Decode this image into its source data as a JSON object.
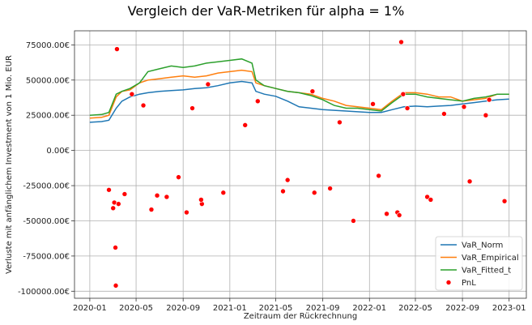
{
  "chart_data": {
    "type": "line",
    "title": "Vergleich der VaR-Metriken für alpha = 1%",
    "xlabel": "Zeitraum der Rückrechnung",
    "ylabel": "Verluste mit anfänglichem Investment von 1 Mio. EUR",
    "xlim": [
      "2019-11-22",
      "2023-02-15"
    ],
    "ylim": [
      -105000,
      85000
    ],
    "x_ticks": [
      "2020-01",
      "2020-05",
      "2020-09",
      "2021-01",
      "2021-05",
      "2021-09",
      "2022-01",
      "2022-05",
      "2022-09",
      "2023-01"
    ],
    "y_ticks": [
      75000,
      50000,
      25000,
      0,
      -25000,
      -50000,
      -75000,
      -100000
    ],
    "y_tick_labels": [
      "75000.00€",
      "50000.00€",
      "25000.00€",
      "0.00€",
      "-25000.00€",
      "-50000.00€",
      "-75000.00€",
      "-100000.00€"
    ],
    "grid": true,
    "legend_position": "bottom-right",
    "series": [
      {
        "name": "VaR_Norm",
        "kind": "line",
        "color": "#1f77b4",
        "points": [
          [
            "2020-01-01",
            20000
          ],
          [
            "2020-02-01",
            20500
          ],
          [
            "2020-02-20",
            21500
          ],
          [
            "2020-03-10",
            30000
          ],
          [
            "2020-03-25",
            35000
          ],
          [
            "2020-04-15",
            38000
          ],
          [
            "2020-05-10",
            40000
          ],
          [
            "2020-06-01",
            41000
          ],
          [
            "2020-07-01",
            42000
          ],
          [
            "2020-08-01",
            42500
          ],
          [
            "2020-09-01",
            43000
          ],
          [
            "2020-10-01",
            44000
          ],
          [
            "2020-11-01",
            44500
          ],
          [
            "2020-12-01",
            46000
          ],
          [
            "2021-01-01",
            48000
          ],
          [
            "2021-02-01",
            49000
          ],
          [
            "2021-02-28",
            48000
          ],
          [
            "2021-03-10",
            42000
          ],
          [
            "2021-04-01",
            40000
          ],
          [
            "2021-05-01",
            38500
          ],
          [
            "2021-06-01",
            35000
          ],
          [
            "2021-07-01",
            31000
          ],
          [
            "2021-08-01",
            30000
          ],
          [
            "2021-09-01",
            29000
          ],
          [
            "2021-10-01",
            28500
          ],
          [
            "2021-11-01",
            28000
          ],
          [
            "2021-12-01",
            27500
          ],
          [
            "2022-01-01",
            27000
          ],
          [
            "2022-02-01",
            27000
          ],
          [
            "2022-03-01",
            29000
          ],
          [
            "2022-04-01",
            31000
          ],
          [
            "2022-05-01",
            31500
          ],
          [
            "2022-06-01",
            31000
          ],
          [
            "2022-07-01",
            31500
          ],
          [
            "2022-08-01",
            32000
          ],
          [
            "2022-09-01",
            33000
          ],
          [
            "2022-10-01",
            34000
          ],
          [
            "2022-11-01",
            35000
          ],
          [
            "2022-12-01",
            36000
          ],
          [
            "2023-01-01",
            36500
          ]
        ]
      },
      {
        "name": "VaR_Empirical",
        "kind": "line",
        "color": "#ff7f0e",
        "points": [
          [
            "2020-01-01",
            23000
          ],
          [
            "2020-02-01",
            23500
          ],
          [
            "2020-02-20",
            25000
          ],
          [
            "2020-03-10",
            38000
          ],
          [
            "2020-03-25",
            42000
          ],
          [
            "2020-04-15",
            43000
          ],
          [
            "2020-05-10",
            48000
          ],
          [
            "2020-06-01",
            50000
          ],
          [
            "2020-07-01",
            51000
          ],
          [
            "2020-08-01",
            52000
          ],
          [
            "2020-09-01",
            53000
          ],
          [
            "2020-10-01",
            52000
          ],
          [
            "2020-11-01",
            53000
          ],
          [
            "2020-12-01",
            55000
          ],
          [
            "2021-01-01",
            56000
          ],
          [
            "2021-02-01",
            57000
          ],
          [
            "2021-02-28",
            56000
          ],
          [
            "2021-03-10",
            48000
          ],
          [
            "2021-04-01",
            46000
          ],
          [
            "2021-05-01",
            44000
          ],
          [
            "2021-06-01",
            42000
          ],
          [
            "2021-07-01",
            41000
          ],
          [
            "2021-08-01",
            40000
          ],
          [
            "2021-09-01",
            37000
          ],
          [
            "2021-10-01",
            35000
          ],
          [
            "2021-11-01",
            32000
          ],
          [
            "2021-12-01",
            31000
          ],
          [
            "2022-01-01",
            30000
          ],
          [
            "2022-02-01",
            29000
          ],
          [
            "2022-03-01",
            35000
          ],
          [
            "2022-04-01",
            41000
          ],
          [
            "2022-05-01",
            41000
          ],
          [
            "2022-06-01",
            40000
          ],
          [
            "2022-07-01",
            38000
          ],
          [
            "2022-08-01",
            38000
          ],
          [
            "2022-09-01",
            35000
          ],
          [
            "2022-10-01",
            36000
          ],
          [
            "2022-11-01",
            37000
          ],
          [
            "2022-12-01",
            40000
          ],
          [
            "2023-01-01",
            40000
          ]
        ]
      },
      {
        "name": "VaR_Fitted_t",
        "kind": "line",
        "color": "#2ca02c",
        "points": [
          [
            "2020-01-01",
            25000
          ],
          [
            "2020-02-01",
            25500
          ],
          [
            "2020-02-20",
            27000
          ],
          [
            "2020-03-10",
            40000
          ],
          [
            "2020-03-25",
            42000
          ],
          [
            "2020-04-15",
            44000
          ],
          [
            "2020-05-10",
            48000
          ],
          [
            "2020-06-01",
            56000
          ],
          [
            "2020-07-01",
            58000
          ],
          [
            "2020-08-01",
            60000
          ],
          [
            "2020-09-01",
            59000
          ],
          [
            "2020-10-01",
            60000
          ],
          [
            "2020-11-01",
            62000
          ],
          [
            "2020-12-01",
            63000
          ],
          [
            "2021-01-01",
            64000
          ],
          [
            "2021-02-01",
            65000
          ],
          [
            "2021-02-28",
            62000
          ],
          [
            "2021-03-10",
            50000
          ],
          [
            "2021-04-01",
            46000
          ],
          [
            "2021-05-01",
            44000
          ],
          [
            "2021-06-01",
            42000
          ],
          [
            "2021-07-01",
            41000
          ],
          [
            "2021-08-01",
            39000
          ],
          [
            "2021-09-01",
            36000
          ],
          [
            "2021-10-01",
            32000
          ],
          [
            "2021-11-01",
            30000
          ],
          [
            "2021-12-01",
            30000
          ],
          [
            "2022-01-01",
            29000
          ],
          [
            "2022-02-01",
            28000
          ],
          [
            "2022-03-01",
            34000
          ],
          [
            "2022-04-01",
            40000
          ],
          [
            "2022-05-01",
            40000
          ],
          [
            "2022-06-01",
            38000
          ],
          [
            "2022-07-01",
            37000
          ],
          [
            "2022-08-01",
            36000
          ],
          [
            "2022-09-01",
            35000
          ],
          [
            "2022-10-01",
            37000
          ],
          [
            "2022-11-01",
            38000
          ],
          [
            "2022-12-01",
            40000
          ],
          [
            "2023-01-01",
            40000
          ]
        ]
      },
      {
        "name": "PnL",
        "kind": "scatter",
        "color": "#ff0000",
        "points": [
          [
            "2020-03-12",
            72000
          ],
          [
            "2020-03-08",
            -69000
          ],
          [
            "2020-03-09",
            -96000
          ],
          [
            "2020-03-02",
            -41000
          ],
          [
            "2020-03-05",
            -37000
          ],
          [
            "2020-03-16",
            -38000
          ],
          [
            "2020-02-20",
            -28000
          ],
          [
            "2020-04-01",
            -31000
          ],
          [
            "2020-04-20",
            40000
          ],
          [
            "2020-05-20",
            32000
          ],
          [
            "2020-06-10",
            -42000
          ],
          [
            "2020-06-25",
            -32000
          ],
          [
            "2020-07-20",
            -33000
          ],
          [
            "2020-08-20",
            -19000
          ],
          [
            "2020-09-10",
            -44000
          ],
          [
            "2020-09-25",
            30000
          ],
          [
            "2020-10-20",
            -38000
          ],
          [
            "2020-10-18",
            -35000
          ],
          [
            "2020-11-05",
            47000
          ],
          [
            "2020-12-15",
            -30000
          ],
          [
            "2021-02-10",
            18000
          ],
          [
            "2021-03-15",
            35000
          ],
          [
            "2021-05-20",
            -29000
          ],
          [
            "2021-06-01",
            -21000
          ],
          [
            "2021-08-05",
            42000
          ],
          [
            "2021-08-10",
            -30000
          ],
          [
            "2021-09-20",
            -27000
          ],
          [
            "2021-10-15",
            20000
          ],
          [
            "2021-11-20",
            -50000
          ],
          [
            "2022-01-10",
            33000
          ],
          [
            "2022-01-25",
            -18000
          ],
          [
            "2022-02-15",
            -45000
          ],
          [
            "2022-03-15",
            -44000
          ],
          [
            "2022-03-20",
            -46000
          ],
          [
            "2022-03-25",
            77000
          ],
          [
            "2022-03-30",
            40000
          ],
          [
            "2022-04-10",
            30000
          ],
          [
            "2022-06-01",
            -33000
          ],
          [
            "2022-06-10",
            -35000
          ],
          [
            "2022-07-15",
            26000
          ],
          [
            "2022-09-05",
            31000
          ],
          [
            "2022-09-20",
            -22000
          ],
          [
            "2022-11-10",
            36000
          ],
          [
            "2022-11-01",
            25000
          ],
          [
            "2022-12-20",
            -36000
          ]
        ]
      }
    ]
  }
}
